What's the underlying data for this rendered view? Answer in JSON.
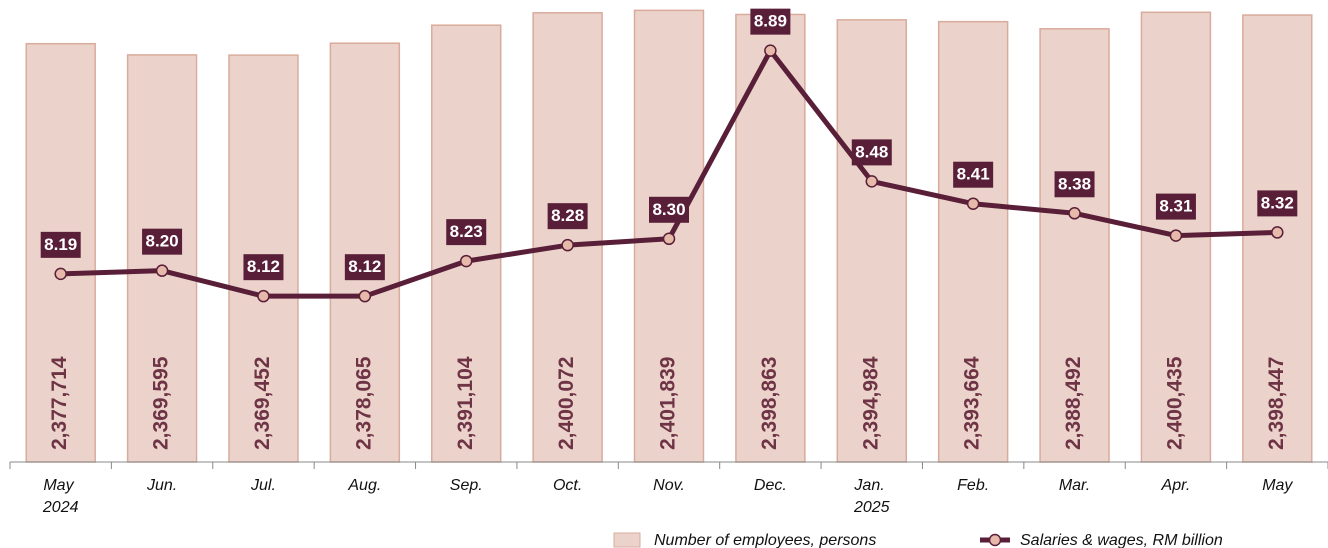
{
  "chart_data": {
    "type": "bar",
    "categories": [
      "May 2024",
      "Jun.",
      "Jul.",
      "Aug.",
      "Sep.",
      "Oct.",
      "Nov.",
      "Dec.",
      "Jan. 2025",
      "Feb.",
      "Mar.",
      "Apr.",
      "May"
    ],
    "series": [
      {
        "name": "Number of employees, persons",
        "type": "bar",
        "color": "#ebd3cb",
        "border": "#d9ab9c",
        "values": [
          2377714,
          2369595,
          2369452,
          2378065,
          2391104,
          2400072,
          2401839,
          2398863,
          2394984,
          2393664,
          2388492,
          2400435,
          2398447
        ],
        "value_labels": [
          "2,377,714",
          "2,369,595",
          "2,369,452",
          "2,378,065",
          "2,391,104",
          "2,400,072",
          "2,401,839",
          "2,398,863",
          "2,394,984",
          "2,393,664",
          "2,388,492",
          "2,400,435",
          "2,398,447"
        ]
      },
      {
        "name": "Salaries & wages, RM billion",
        "type": "line",
        "axis": "y2",
        "color": "#5a1f38",
        "marker_color": "#e6b9aa",
        "values": [
          8.19,
          8.2,
          8.12,
          8.12,
          8.23,
          8.28,
          8.3,
          8.89,
          8.48,
          8.41,
          8.38,
          8.31,
          8.32
        ],
        "value_labels": [
          "8.19",
          "8.20",
          "8.12",
          "8.12",
          "8.23",
          "8.28",
          "8.30",
          "8.89",
          "8.48",
          "8.41",
          "8.38",
          "8.31",
          "8.32"
        ]
      }
    ],
    "ylim": [
      2075000,
      2405000
    ],
    "y2lim": [
      7.6,
      9.03
    ]
  }
}
